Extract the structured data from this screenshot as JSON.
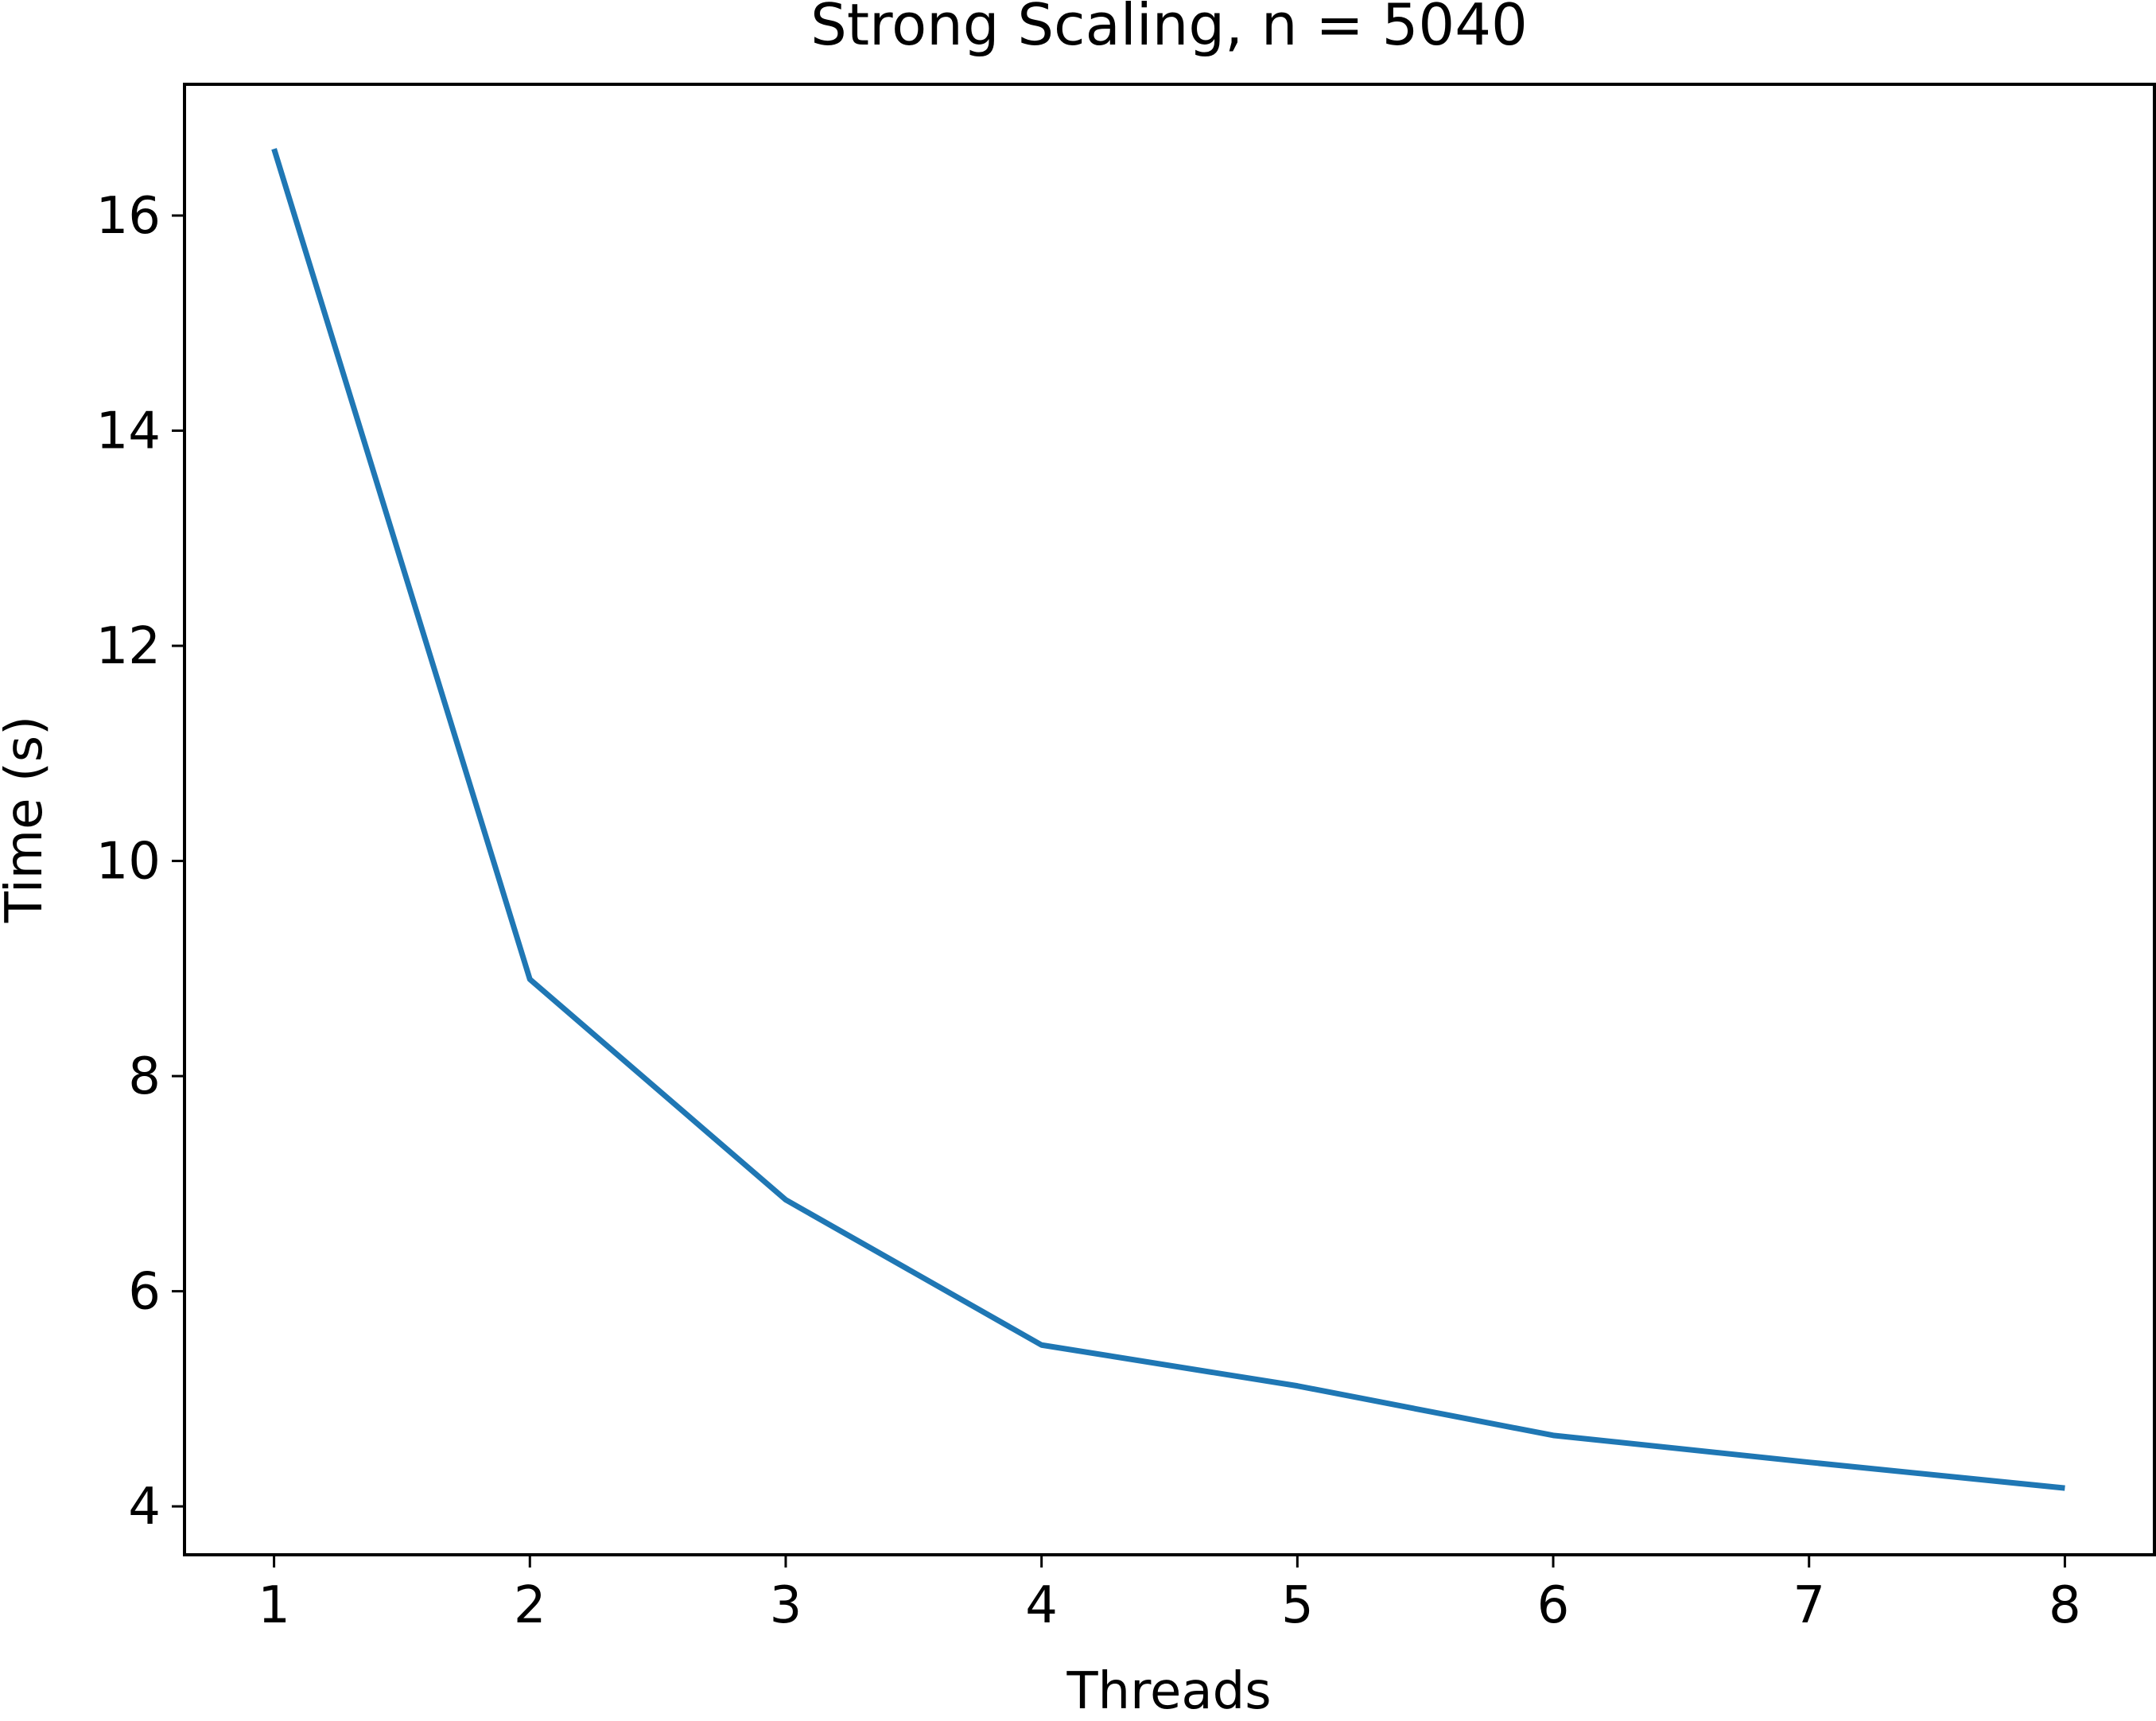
{
  "chart_data": {
    "type": "line",
    "title": "Strong Scaling, n = 5040",
    "xlabel": "Threads",
    "ylabel": "Time (s)",
    "x": [
      1,
      2,
      3,
      4,
      5,
      6,
      7,
      8
    ],
    "series": [
      {
        "values": [
          16.62,
          8.9,
          6.85,
          5.5,
          5.12,
          4.66,
          4.41,
          4.17
        ]
      }
    ],
    "xlim": [
      0.65,
      8.35
    ],
    "ylim": [
      3.55,
      17.22
    ],
    "xticks": [
      "1",
      "2",
      "3",
      "4",
      "5",
      "6",
      "7",
      "8"
    ],
    "yticks": [
      "4",
      "6",
      "8",
      "10",
      "12",
      "14",
      "16"
    ],
    "grid": false,
    "line_color": "#1f77b4"
  }
}
